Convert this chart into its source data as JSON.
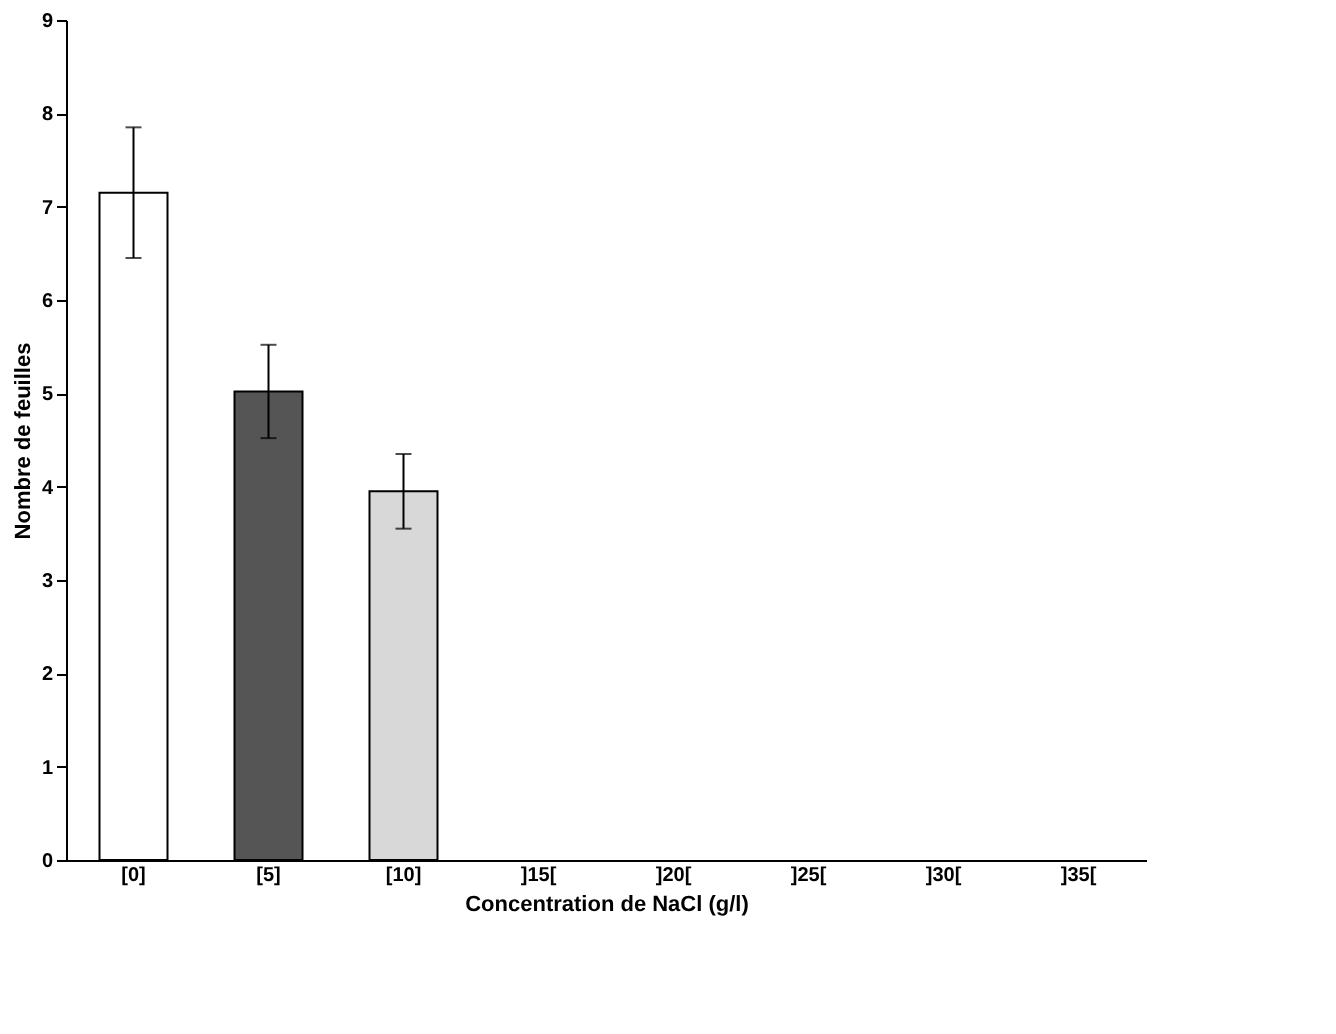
{
  "chart_data": {
    "type": "bar",
    "xlabel": "Concentration de NaCl (g/l)",
    "ylabel": "Nombre de feuilles",
    "categories": [
      "[0]",
      "[5]",
      "[10]",
      "]15[",
      "]20[",
      "]25[",
      "]30[",
      "]35["
    ],
    "values": [
      7.15,
      5.02,
      3.95,
      null,
      null,
      null,
      null,
      null
    ],
    "errors": [
      0.7,
      0.5,
      0.4,
      null,
      null,
      null,
      null,
      null
    ],
    "colors": [
      "#ffffff",
      "#555555",
      "#d8d8d8",
      null,
      null,
      null,
      null,
      null
    ],
    "ylim": [
      0,
      9
    ],
    "yticks": [
      0,
      1,
      2,
      3,
      4,
      5,
      6,
      7,
      8,
      9
    ],
    "grid": false,
    "legend": false
  }
}
